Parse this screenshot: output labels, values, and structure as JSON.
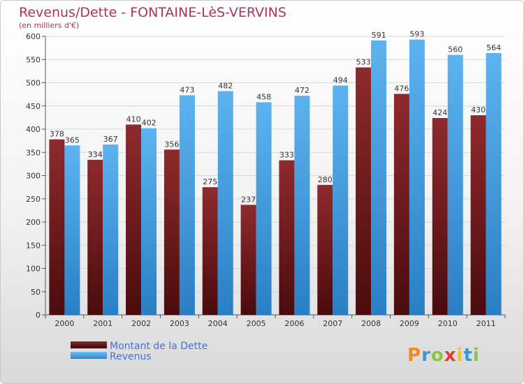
{
  "chart_data": {
    "type": "bar",
    "title": "Revenus/Dette - FONTAINE-LèS-VERVINS",
    "subtitle": "(en milliers d'€)",
    "categories": [
      "2000",
      "2001",
      "2002",
      "2003",
      "2004",
      "2005",
      "2006",
      "2007",
      "2008",
      "2009",
      "2010",
      "2011"
    ],
    "series": [
      {
        "name": "Montant de la Dette",
        "color": "#7a1f22",
        "values": [
          378,
          334,
          410,
          356,
          275,
          237,
          333,
          280,
          533,
          476,
          424,
          430
        ]
      },
      {
        "name": "Revenus",
        "color": "#3d9be0",
        "values": [
          365,
          367,
          402,
          473,
          482,
          458,
          472,
          494,
          591,
          593,
          560,
          564
        ]
      }
    ],
    "ylim": [
      0,
      600
    ],
    "yticks": [
      0,
      50,
      100,
      150,
      200,
      250,
      300,
      350,
      400,
      450,
      500,
      550,
      600
    ],
    "grid": true,
    "legend": "bottom-left",
    "logo": "Proxiti"
  }
}
